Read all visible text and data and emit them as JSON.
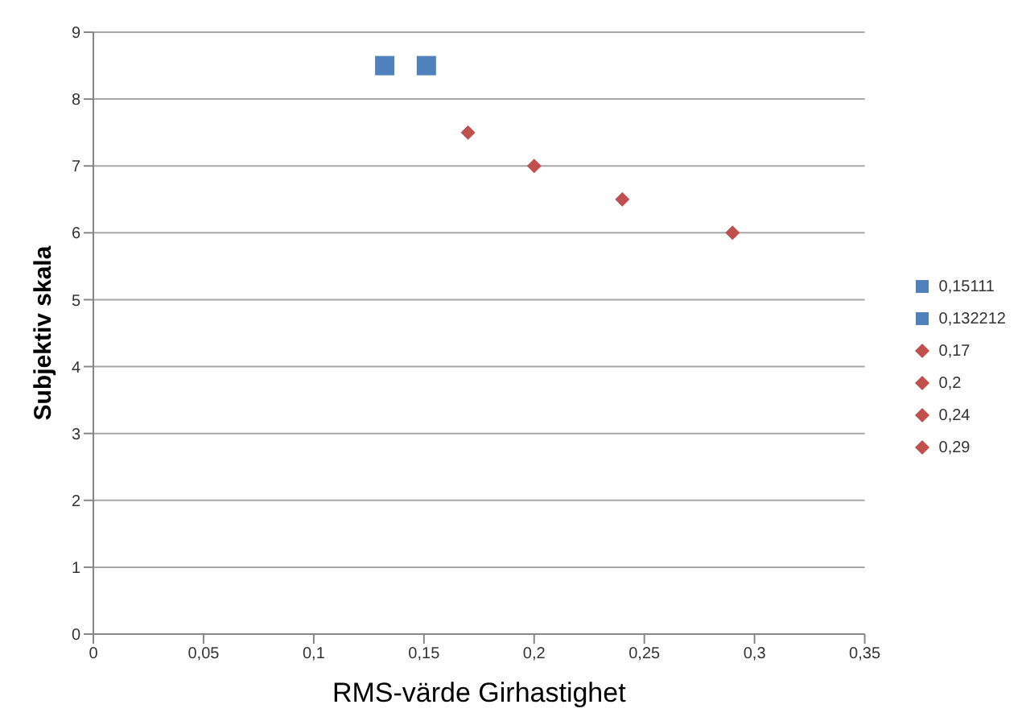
{
  "chart_data": {
    "type": "scatter",
    "xlabel": "RMS-värde Girhastighet",
    "ylabel": "Subjektiv skala",
    "xlim": [
      0,
      0.35
    ],
    "xticks": [
      0,
      {
        "value": 0.05,
        "label": "0,05"
      },
      {
        "value": 0.1,
        "label": "0,1"
      },
      {
        "value": 0.15,
        "label": "0,15"
      },
      {
        "value": 0.2,
        "label": "0,2"
      },
      {
        "value": 0.25,
        "label": "0,25"
      },
      {
        "value": 0.3,
        "label": "0,3"
      },
      {
        "value": 0.35,
        "label": "0,35"
      }
    ],
    "ylim": [
      0,
      9
    ],
    "yticks": [
      0,
      1,
      2,
      3,
      4,
      5,
      6,
      7,
      8,
      9
    ],
    "grid": "y",
    "legend": "right",
    "series": [
      {
        "name": "0,15111",
        "color": "#4f81bd",
        "marker": "square",
        "x": [
          0.15111
        ],
        "values": [
          8.5
        ]
      },
      {
        "name": "0,132212",
        "color": "#4f81bd",
        "marker": "square",
        "x": [
          0.132212
        ],
        "values": [
          8.5
        ]
      },
      {
        "name": "0,17",
        "color": "#c0504d",
        "marker": "diamond",
        "x": [
          0.17
        ],
        "values": [
          7.5
        ]
      },
      {
        "name": "0,2",
        "color": "#c0504d",
        "marker": "diamond",
        "x": [
          0.2
        ],
        "values": [
          7
        ]
      },
      {
        "name": "0,24",
        "color": "#c0504d",
        "marker": "diamond",
        "x": [
          0.24
        ],
        "values": [
          6.5
        ]
      },
      {
        "name": "0,29",
        "color": "#c0504d",
        "marker": "diamond",
        "x": [
          0.29
        ],
        "values": [
          6
        ]
      }
    ]
  }
}
